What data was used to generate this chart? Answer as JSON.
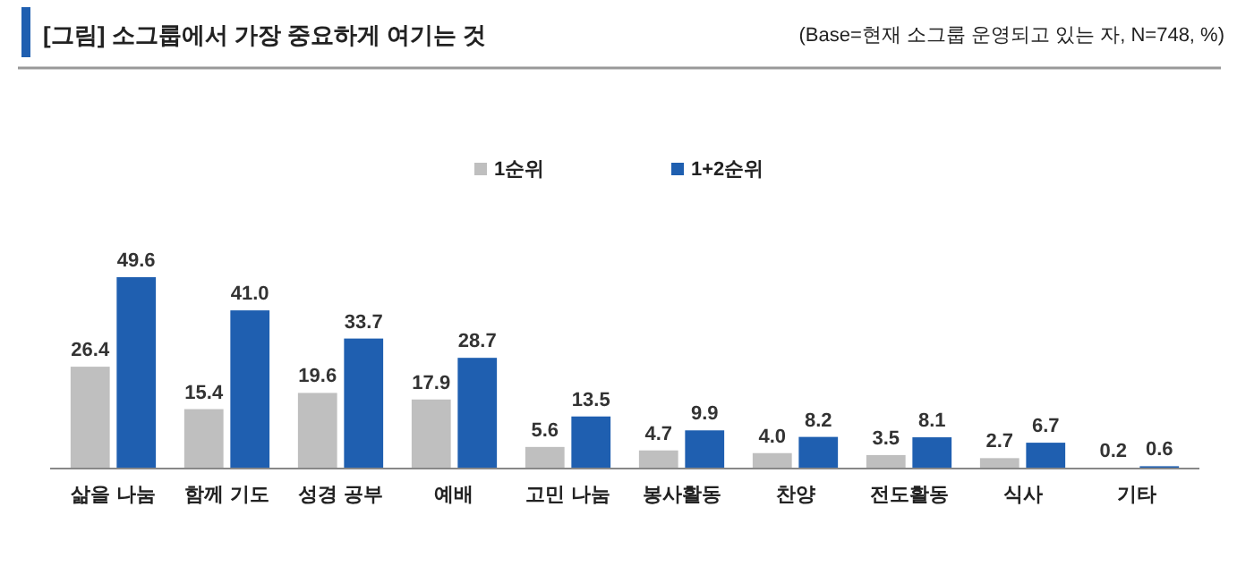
{
  "chart_data": {
    "type": "bar",
    "title": "[그림] 소그룹에서 가장 중요하게 여기는 것",
    "subtitle": "(Base=현재 소그룹 운영되고 있는 자, N=748, %)",
    "categories": [
      "삶을 나눔",
      "함께 기도",
      "성경 공부",
      "예배",
      "고민 나눔",
      "봉사활동",
      "찬양",
      "전도활동",
      "식사",
      "기타"
    ],
    "series": [
      {
        "name": "1순위",
        "color": "#bfbfbf",
        "values": [
          26.4,
          15.4,
          19.6,
          17.9,
          5.6,
          4.7,
          4.0,
          3.5,
          2.7,
          0.2
        ],
        "value_labels": [
          "26.4",
          "15.4",
          "19.6",
          "17.9",
          "5.6",
          "4.7",
          "4.0",
          "3.5",
          "2.7",
          "0.2"
        ]
      },
      {
        "name": "1+2순위",
        "color": "#1f5fb0",
        "values": [
          49.6,
          41.0,
          33.7,
          28.7,
          13.5,
          9.9,
          8.2,
          8.1,
          6.7,
          0.6
        ],
        "value_labels": [
          "49.6",
          "41.0",
          "33.7",
          "28.7",
          "13.5",
          "9.9",
          "8.2",
          "8.1",
          "6.7",
          "0.6"
        ]
      }
    ],
    "legend": "top"
  }
}
